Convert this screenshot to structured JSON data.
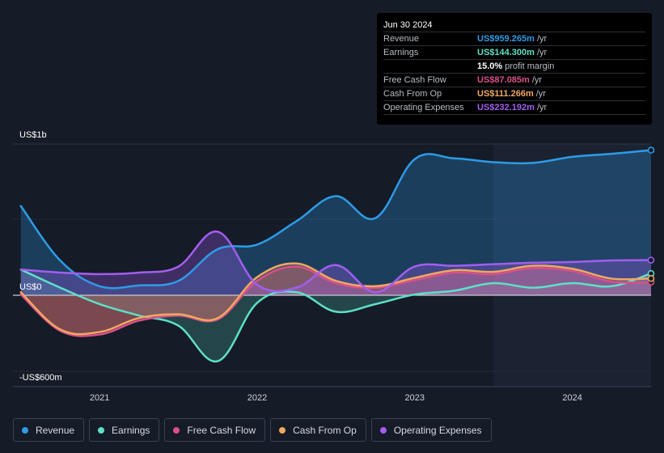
{
  "tooltip": {
    "date": "Jun 30 2024",
    "rows": [
      {
        "label": "Revenue",
        "value": "US$959.265m",
        "unit": "/yr",
        "color": "#2d9ce8"
      },
      {
        "label": "Earnings",
        "value": "US$144.300m",
        "unit": "/yr",
        "color": "#5de0c8"
      },
      {
        "label": "",
        "value": "15.0%",
        "unit": "profit margin",
        "color": "#ffffff"
      },
      {
        "label": "Free Cash Flow",
        "value": "US$87.085m",
        "unit": "/yr",
        "color": "#d9508a"
      },
      {
        "label": "Cash From Op",
        "value": "US$111.266m",
        "unit": "/yr",
        "color": "#f0a860"
      },
      {
        "label": "Operating Expenses",
        "value": "US$232.192m",
        "unit": "/yr",
        "color": "#a35ef0"
      }
    ]
  },
  "chart_data": {
    "type": "area",
    "title": "",
    "xlabel": "",
    "ylabel": "",
    "x_range": [
      2020.45,
      2024.5
    ],
    "ylim": [
      -600,
      1000
    ],
    "y_labels": {
      "top": "US$1b",
      "zero": "US$0",
      "bottom": "-US$600m"
    },
    "x_ticks": [
      {
        "value": 2021.0,
        "label": "2021"
      },
      {
        "value": 2022.0,
        "label": "2022"
      },
      {
        "value": 2023.0,
        "label": "2023"
      },
      {
        "value": 2024.0,
        "label": "2024"
      }
    ],
    "forecast_start": 2023.5,
    "series": [
      {
        "name": "Revenue",
        "color": "#2d9ce8",
        "fill": true,
        "x": [
          2020.5,
          2020.75,
          2021.0,
          2021.25,
          2021.5,
          2021.75,
          2022.0,
          2022.25,
          2022.5,
          2022.75,
          2023.0,
          2023.25,
          2023.5,
          2023.75,
          2024.0,
          2024.25,
          2024.5
        ],
        "values": [
          590,
          230,
          60,
          65,
          95,
          305,
          335,
          490,
          655,
          510,
          900,
          905,
          880,
          875,
          915,
          935,
          959
        ]
      },
      {
        "name": "Earnings",
        "color": "#5de0c8",
        "fill": true,
        "x": [
          2020.5,
          2020.75,
          2021.0,
          2021.25,
          2021.5,
          2021.75,
          2022.0,
          2022.25,
          2022.5,
          2022.75,
          2023.0,
          2023.25,
          2023.5,
          2023.75,
          2024.0,
          2024.25,
          2024.5
        ],
        "values": [
          170,
          50,
          -70,
          -160,
          -240,
          -520,
          -60,
          20,
          -130,
          -70,
          5,
          30,
          80,
          50,
          80,
          60,
          144
        ]
      },
      {
        "name": "Free Cash Flow",
        "color": "#d9508a",
        "fill": true,
        "x": [
          2020.5,
          2020.75,
          2021.0,
          2021.25,
          2021.5,
          2021.75,
          2022.0,
          2022.25,
          2022.5,
          2022.75,
          2023.0,
          2023.25,
          2023.5,
          2023.75,
          2024.0,
          2024.25,
          2024.5
        ],
        "values": [
          5,
          -280,
          -310,
          -200,
          -160,
          -190,
          95,
          190,
          80,
          50,
          100,
          150,
          140,
          180,
          160,
          90,
          87
        ]
      },
      {
        "name": "Cash From Op",
        "color": "#f0a860",
        "fill": true,
        "x": [
          2020.5,
          2020.75,
          2021.0,
          2021.25,
          2021.5,
          2021.75,
          2022.0,
          2022.25,
          2022.5,
          2022.75,
          2023.0,
          2023.25,
          2023.5,
          2023.75,
          2024.0,
          2024.25,
          2024.5
        ],
        "values": [
          20,
          -270,
          -290,
          -180,
          -150,
          -180,
          120,
          210,
          95,
          60,
          115,
          165,
          155,
          195,
          175,
          110,
          111
        ]
      },
      {
        "name": "Operating Expenses",
        "color": "#a35ef0",
        "fill": true,
        "x": [
          2020.5,
          2020.75,
          2021.0,
          2021.25,
          2021.5,
          2021.75,
          2022.0,
          2022.25,
          2022.5,
          2022.75,
          2023.0,
          2023.25,
          2023.5,
          2023.75,
          2024.0,
          2024.25,
          2024.5
        ],
        "values": [
          170,
          150,
          140,
          150,
          190,
          420,
          70,
          50,
          200,
          20,
          190,
          195,
          205,
          215,
          220,
          230,
          232
        ]
      }
    ]
  },
  "legend": [
    {
      "label": "Revenue",
      "color": "#2d9ce8"
    },
    {
      "label": "Earnings",
      "color": "#5de0c8"
    },
    {
      "label": "Free Cash Flow",
      "color": "#d9508a"
    },
    {
      "label": "Cash From Op",
      "color": "#f0a860"
    },
    {
      "label": "Operating Expenses",
      "color": "#a35ef0"
    }
  ]
}
